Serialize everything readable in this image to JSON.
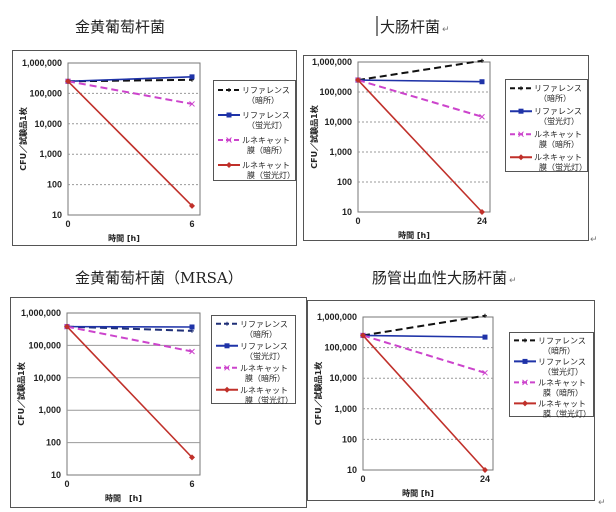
{
  "colors": {
    "reference_dark": "#111111",
    "reference_dark_mrsa": "#1f2f77",
    "reference_light": "#1f33a8",
    "renecat_dark": "#cc44cc",
    "renecat_light": "#c0302a",
    "grid": "#999999"
  },
  "paragraph_mark": "↵",
  "chart_data": [
    {
      "type": "line",
      "title": "金黄葡萄杆菌",
      "xlabel": "時間 [h]",
      "ylabel": "CFU／試験品1枚",
      "yscale": "log",
      "ylim": [
        10,
        1000000
      ],
      "yticks": [
        "1,000,000",
        "100,000",
        "10,000",
        "1,000",
        "100",
        "10"
      ],
      "xticks": [
        "0",
        "6"
      ],
      "x": [
        0,
        6
      ],
      "grid": "dotted",
      "legend": "right",
      "series": [
        {
          "name": [
            "リファレンス",
            "（暗所）"
          ],
          "values": [
            250000,
            280000
          ]
        },
        {
          "name": [
            "リファレンス",
            "（蛍光灯）"
          ],
          "values": [
            250000,
            350000
          ]
        },
        {
          "name": [
            "ルネキャット",
            "膜（暗所）"
          ],
          "values": [
            250000,
            45000
          ]
        },
        {
          "name": [
            "ルネキャット",
            "膜（蛍光灯）"
          ],
          "values": [
            250000,
            20
          ]
        }
      ]
    },
    {
      "type": "line",
      "title": "大肠杆菌",
      "title_mark": "↵",
      "xlabel": "時間 [h]",
      "ylabel": "CFU／試験品1枚",
      "yscale": "log",
      "ylim": [
        10,
        1000000
      ],
      "yticks": [
        "1,000,000",
        "100,000",
        "10,000",
        "1,000",
        "100",
        "10"
      ],
      "xticks": [
        "0",
        "24"
      ],
      "x": [
        0,
        24
      ],
      "grid": "dotted",
      "legend": "right",
      "series": [
        {
          "name": [
            "リファレンス",
            "（暗所）"
          ],
          "values": [
            250000,
            1100000
          ]
        },
        {
          "name": [
            "リファレンス",
            "（蛍光灯）"
          ],
          "values": [
            250000,
            220000
          ]
        },
        {
          "name": [
            "ルネキャット",
            "膜（暗所）"
          ],
          "values": [
            250000,
            15000
          ]
        },
        {
          "name": [
            "ルネキャット",
            "膜（蛍光灯）"
          ],
          "values": [
            250000,
            10
          ]
        }
      ]
    },
    {
      "type": "line",
      "title": "金黄葡萄杆菌（MRSA）",
      "xlabel": "時間　[h]",
      "ylabel": "CFU／試験品1枚",
      "yscale": "log",
      "ylim": [
        10,
        1000000
      ],
      "yticks": [
        "1,000,000",
        "100,000",
        "10,000",
        "1,000",
        "100",
        "10"
      ],
      "xticks": [
        "0",
        "6"
      ],
      "x": [
        0,
        6
      ],
      "grid": "solid",
      "legend": "right",
      "series": [
        {
          "name": [
            "リファレンス",
            "（暗所）"
          ],
          "values": [
            380000,
            280000
          ]
        },
        {
          "name": [
            "リファレンス",
            "（蛍光灯）"
          ],
          "values": [
            380000,
            370000
          ]
        },
        {
          "name": [
            "ルネキャット",
            "膜（暗所）"
          ],
          "values": [
            380000,
            65000
          ]
        },
        {
          "name": [
            "ルネキャット",
            "膜（蛍光灯）"
          ],
          "values": [
            380000,
            35
          ]
        }
      ]
    },
    {
      "type": "line",
      "title": "肠管出血性大肠杆菌",
      "title_mark": "↵",
      "xlabel": "時間 [h]",
      "ylabel": "CFU／試験品1枚",
      "yscale": "log",
      "ylim": [
        10,
        1000000
      ],
      "yticks": [
        "1,000,000",
        "100,000",
        "10,000",
        "1,000",
        "100",
        "10"
      ],
      "xticks": [
        "0",
        "24"
      ],
      "x": [
        0,
        24
      ],
      "grid": "dotted",
      "legend": "right",
      "series": [
        {
          "name": [
            "リファレンス",
            "（暗所）"
          ],
          "values": [
            250000,
            1100000
          ]
        },
        {
          "name": [
            "リファレンス",
            "（蛍光灯）"
          ],
          "values": [
            250000,
            220000
          ]
        },
        {
          "name": [
            "ルネキャット",
            "膜（暗所）"
          ],
          "values": [
            250000,
            15000
          ]
        },
        {
          "name": [
            "ルネキャット",
            "膜（蛍光灯）"
          ],
          "values": [
            250000,
            10
          ]
        }
      ]
    }
  ]
}
